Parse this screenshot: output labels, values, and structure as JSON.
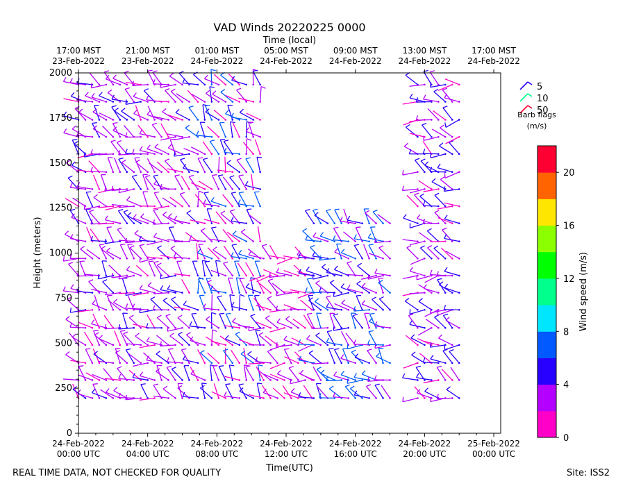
{
  "chart_data": {
    "type": "wind_barb_time_height",
    "title": "VAD Winds 20220225 0000",
    "top_axis_label": "Time (local)",
    "xlabel": "Time(UTC)",
    "ylabel": "Height (meters)",
    "colorbar_label": "Wind speed (m/s)",
    "xlim_hours": [
      0,
      24.4
    ],
    "ylim": [
      0,
      2000
    ],
    "y_ticks": [
      0,
      250,
      500,
      750,
      1000,
      1250,
      1500,
      1750,
      2000
    ],
    "x_ticks": [
      {
        "hour": 0,
        "line1": "24-Feb-2022",
        "line2": "00:00 UTC"
      },
      {
        "hour": 4,
        "line1": "24-Feb-2022",
        "line2": "04:00 UTC"
      },
      {
        "hour": 8,
        "line1": "24-Feb-2022",
        "line2": "08:00 UTC"
      },
      {
        "hour": 12,
        "line1": "24-Feb-2022",
        "line2": "12:00 UTC"
      },
      {
        "hour": 16,
        "line1": "24-Feb-2022",
        "line2": "16:00 UTC"
      },
      {
        "hour": 20,
        "line1": "24-Feb-2022",
        "line2": "20:00 UTC"
      },
      {
        "hour": 24,
        "line1": "25-Feb-2022",
        "line2": "00:00 UTC"
      }
    ],
    "top_ticks": [
      {
        "hour": 0,
        "line1": "17:00 MST",
        "line2": "23-Feb-2022"
      },
      {
        "hour": 4,
        "line1": "21:00 MST",
        "line2": "23-Feb-2022"
      },
      {
        "hour": 8,
        "line1": "01:00 MST",
        "line2": "24-Feb-2022"
      },
      {
        "hour": 12,
        "line1": "05:00 MST",
        "line2": "24-Feb-2022"
      },
      {
        "hour": 16,
        "line1": "09:00 MST",
        "line2": "24-Feb-2022"
      },
      {
        "hour": 20,
        "line1": "13:00 MST",
        "line2": "24-Feb-2022"
      },
      {
        "hour": 24,
        "line1": "17:00 MST",
        "line2": "24-Feb-2022"
      }
    ],
    "colorbar": {
      "min": 0,
      "max": 22,
      "ticks": [
        0,
        4,
        8,
        12,
        16,
        20
      ],
      "colors": [
        "#ff00c8",
        "#b400ff",
        "#2800ff",
        "#005aff",
        "#00e6ff",
        "#00ff8c",
        "#00ff00",
        "#8cff00",
        "#ffe600",
        "#ff6400",
        "#ff0032"
      ]
    },
    "legend": {
      "title_line1": "Barb flags",
      "title_line2": "(m/s)",
      "entries": [
        {
          "label": "5",
          "color": "#2800ff"
        },
        {
          "label": "10",
          "color": "#00ff8c"
        },
        {
          "label": "50",
          "color": "#ff0032"
        }
      ]
    },
    "time_blocks": [
      {
        "start": 0,
        "end": 6.5,
        "top": 2000,
        "speed": 3,
        "var": 1.5,
        "dir": 300
      },
      {
        "start": 6.9,
        "end": 10.7,
        "top": 2000,
        "speed": 4,
        "var": 3,
        "dir": 320
      },
      {
        "start": 10.7,
        "end": 13.6,
        "top": 980,
        "speed": 2,
        "var": 1.5,
        "dir": 290
      },
      {
        "start": 13.6,
        "end": 18.2,
        "top": 1170,
        "speed": 5,
        "var": 3,
        "dir": 300
      },
      {
        "start": 19.6,
        "end": 22.2,
        "top": 2000,
        "speed": 3.5,
        "var": 2.5,
        "dir": 285
      }
    ],
    "levels_m": [
      195,
      295,
      390,
      490,
      585,
      685,
      780,
      875,
      970,
      1065,
      1165,
      1260,
      1355,
      1450,
      1550,
      1645,
      1740,
      1840,
      1935
    ],
    "time_step_hours": 0.4
  },
  "footer": {
    "left_note": "REAL TIME DATA, NOT CHECKED FOR QUALITY",
    "site": "Site: ISS2"
  }
}
